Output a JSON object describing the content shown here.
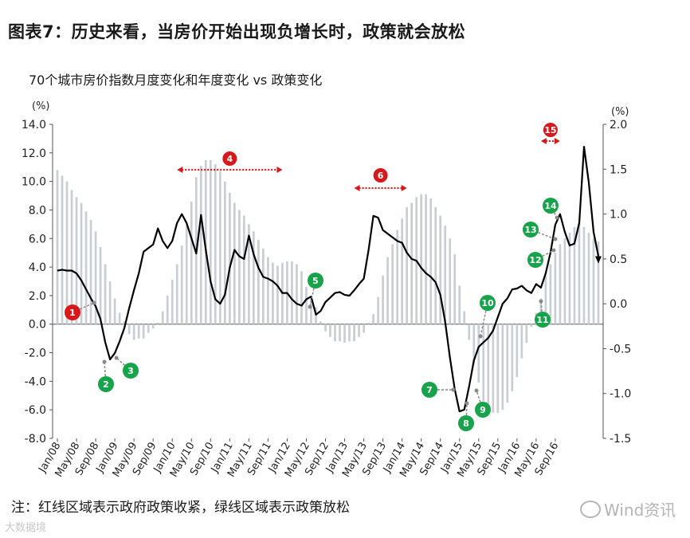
{
  "title": "图表7：历史来看，当房价开始出现负增长时，政策就会放松",
  "subtitle": "70个城市房价指数月度变化和年度变化 vs 政策变化",
  "note": "注：红线区域表示政府政策收紧，绿线区域表示政策放松",
  "watermark_left": "大数据境",
  "watermark_right": "Wind资讯",
  "colors": {
    "line": "#000000",
    "bars": "#c9ced4",
    "tighten": "#d7191c",
    "ease": "#16a34a"
  },
  "chart_data": {
    "type": "bar+line",
    "left_axis": {
      "unit_label": "(%)",
      "ylim": [
        -8,
        14
      ],
      "ticks": [
        "14.0",
        "12.0",
        "10.0",
        "8.0",
        "6.0",
        "4.0",
        "2.0",
        "0.0",
        "-2.0",
        "-4.0",
        "-6.0",
        "-8.0"
      ]
    },
    "right_axis": {
      "unit_label": "(%)",
      "ylim": [
        -1.5,
        2.0
      ],
      "ticks": [
        "2.0",
        "1.5",
        "1.0",
        "0.5",
        "0.0",
        "-0.5",
        "-1.0",
        "-1.5"
      ]
    },
    "x_tick_labels": [
      "Jan/08",
      "May/08",
      "Sep/08",
      "Jan/09",
      "May/09",
      "Sep/09",
      "Jan/10",
      "May/10",
      "Sep/10",
      "Jan/11",
      "May/11",
      "Sep/11",
      "Jan/12",
      "May/12",
      "Sep/12",
      "Jan/13",
      "May/13",
      "Sep/13",
      "Jan/14",
      "May/14",
      "Sep/14",
      "Jan/15",
      "May/15",
      "Sep/15",
      "Jan/16",
      "May/16",
      "Sep/16"
    ],
    "series": [
      {
        "name": "",
        "kind": "bar",
        "axis": "left",
        "start": "Jan/08",
        "values": [
          10.8,
          10.4,
          10.0,
          9.4,
          8.9,
          8.5,
          7.9,
          7.3,
          6.5,
          5.4,
          4.2,
          3.0,
          1.8,
          0.8,
          0.2,
          -0.7,
          -1.1,
          -1.0,
          -1.0,
          -0.6,
          -0.3,
          0.1,
          0.9,
          2.0,
          3.1,
          4.2,
          5.5,
          7.0,
          8.6,
          10.3,
          11.1,
          11.5,
          11.5,
          11.2,
          10.7,
          10.0,
          9.2,
          8.5,
          8.0,
          7.6,
          7.0,
          6.5,
          5.9,
          5.3,
          4.7,
          4.3,
          4.1,
          4.3,
          4.4,
          4.4,
          4.2,
          3.7,
          2.6,
          1.8,
          1.2,
          0.2,
          -0.5,
          -0.9,
          -1.2,
          -1.2,
          -1.3,
          -1.2,
          -1.2,
          -0.9,
          -0.6,
          0.1,
          0.7,
          1.9,
          3.4,
          4.7,
          5.6,
          6.6,
          7.4,
          8.2,
          8.5,
          8.9,
          9.1,
          9.1,
          8.8,
          8.2,
          7.6,
          6.9,
          6.0,
          4.9,
          2.7,
          0.9,
          -1.1,
          -2.8,
          -4.1,
          -5.4,
          -6.0,
          -6.2,
          -6.2,
          -6.0,
          -5.5,
          -4.7,
          -3.7,
          -2.4,
          -1.3,
          -0.2,
          0.8,
          1.8,
          3.4,
          4.2,
          5.0,
          5.6,
          6.0,
          6.4,
          6.8,
          7.1,
          6.8,
          6.4,
          6.0,
          5.8
        ]
      },
      {
        "name": "",
        "kind": "line",
        "axis": "right",
        "start": "Jan/08",
        "values": [
          0.37,
          0.38,
          0.37,
          0.37,
          0.34,
          0.26,
          0.16,
          0.06,
          -0.03,
          -0.17,
          -0.43,
          -0.62,
          -0.55,
          -0.42,
          -0.27,
          -0.05,
          0.15,
          0.34,
          0.58,
          0.62,
          0.66,
          0.84,
          0.7,
          0.62,
          0.7,
          0.9,
          1.0,
          0.9,
          0.73,
          0.56,
          0.99,
          0.6,
          0.25,
          0.05,
          0.0,
          0.1,
          0.4,
          0.6,
          0.53,
          0.5,
          0.76,
          0.55,
          0.4,
          0.3,
          0.28,
          0.25,
          0.2,
          0.12,
          0.12,
          0.05,
          0.0,
          -0.02,
          0.05,
          0.08,
          -0.12,
          -0.08,
          0.02,
          0.07,
          0.12,
          0.13,
          0.1,
          0.09,
          0.15,
          0.22,
          0.28,
          0.6,
          0.98,
          0.96,
          0.82,
          0.78,
          0.74,
          0.7,
          0.68,
          0.57,
          0.5,
          0.48,
          0.4,
          0.34,
          0.3,
          0.24,
          0.1,
          -0.2,
          -0.6,
          -0.95,
          -1.2,
          -1.18,
          -0.92,
          -0.63,
          -0.48,
          -0.43,
          -0.38,
          -0.3,
          -0.15,
          0.0,
          0.06,
          0.16,
          0.17,
          0.2,
          0.15,
          0.12,
          0.22,
          0.18,
          0.34,
          0.57,
          0.88,
          1.0,
          0.8,
          0.65,
          0.67,
          0.9,
          1.75,
          1.35,
          0.8,
          0.53
        ]
      }
    ],
    "policy_periods": [
      {
        "label": "4",
        "type": "tighten",
        "from": "Feb/10",
        "to": "Dec/11"
      },
      {
        "label": "6",
        "type": "tighten",
        "from": "Mar/13",
        "to": "Feb/14"
      },
      {
        "label": "15",
        "type": "tighten",
        "from": "Jun/16",
        "to": "Oct/16"
      }
    ],
    "events": [
      {
        "label": "1",
        "type": "tighten",
        "month": "Sep/08"
      },
      {
        "label": "2",
        "type": "ease",
        "month": "Jan/09"
      },
      {
        "label": "3",
        "type": "ease",
        "month": "Feb/09"
      },
      {
        "label": "5",
        "type": "ease",
        "month": "Apr/12"
      },
      {
        "label": "7",
        "type": "ease",
        "month": "Sep/14"
      },
      {
        "label": "8",
        "type": "ease",
        "month": "Sep/14"
      },
      {
        "label": "9",
        "type": "ease",
        "month": "Oct/14"
      },
      {
        "label": "10",
        "type": "ease",
        "month": "Jan/15"
      },
      {
        "label": "11",
        "type": "ease",
        "month": "Dec/15"
      },
      {
        "label": "12",
        "type": "ease",
        "month": "Feb/16"
      },
      {
        "label": "13",
        "type": "ease",
        "month": "Mar/16"
      },
      {
        "label": "14",
        "type": "ease",
        "month": "Mar/16"
      }
    ]
  }
}
